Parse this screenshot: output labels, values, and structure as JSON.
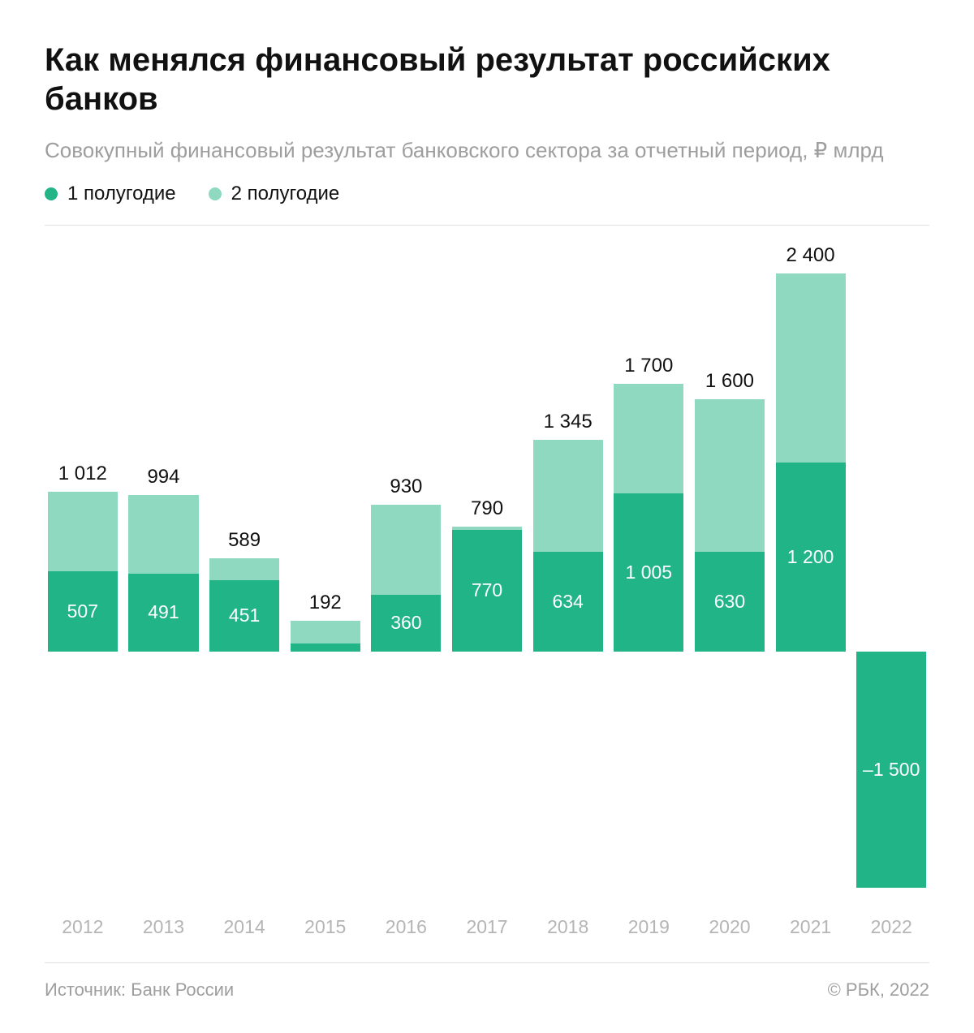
{
  "title": "Как менялся финансовый результат российских банков",
  "subtitle": "Совокупный финансовый результат банковского сектора за отчетный период, ₽ млрд",
  "legend": [
    {
      "label": "1 полугодие",
      "color": "#20b486"
    },
    {
      "label": "2 полугодие",
      "color": "#8fd9c0"
    }
  ],
  "chart": {
    "type": "stacked-bar",
    "y_max": 2600,
    "y_min": -1600,
    "colors": {
      "h1": "#20b486",
      "h2": "#8fd9c0",
      "h1_text": "#ffffff",
      "total_text": "#111111",
      "grid": "#e0e0e0"
    },
    "value_fontsize": 23,
    "total_fontsize": 24,
    "xlabel_fontsize": 23,
    "xlabel_color": "#b5b5b5",
    "background_color": "#ffffff",
    "bar_gap_pct": 8,
    "data": [
      {
        "year": "2012",
        "h1": 507,
        "total": 1012,
        "total_label": "1 012",
        "h1_label": "507"
      },
      {
        "year": "2013",
        "h1": 491,
        "total": 994,
        "total_label": "994",
        "h1_label": "491"
      },
      {
        "year": "2014",
        "h1": 451,
        "total": 589,
        "total_label": "589",
        "h1_label": "451"
      },
      {
        "year": "2015",
        "h1": 50,
        "total": 192,
        "total_label": "192",
        "h1_label": ""
      },
      {
        "year": "2016",
        "h1": 360,
        "total": 930,
        "total_label": "930",
        "h1_label": "360"
      },
      {
        "year": "2017",
        "h1": 770,
        "total": 790,
        "total_label": "790",
        "h1_label": "770"
      },
      {
        "year": "2018",
        "h1": 634,
        "total": 1345,
        "total_label": "1 345",
        "h1_label": "634"
      },
      {
        "year": "2019",
        "h1": 1005,
        "total": 1700,
        "total_label": "1 700",
        "h1_label": "1 005"
      },
      {
        "year": "2020",
        "h1": 630,
        "total": 1600,
        "total_label": "1 600",
        "h1_label": "630"
      },
      {
        "year": "2021",
        "h1": 1200,
        "total": 2400,
        "total_label": "2 400",
        "h1_label": "1 200"
      },
      {
        "year": "2022",
        "h1": -1500,
        "total": -1500,
        "total_label": "",
        "h1_label": "–1 500"
      }
    ]
  },
  "footer": {
    "source": "Источник: Банк России",
    "credit": "© РБК, 2022"
  }
}
